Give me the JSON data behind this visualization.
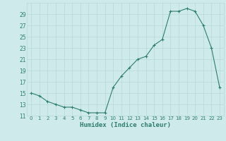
{
  "x": [
    0,
    1,
    2,
    3,
    4,
    5,
    6,
    7,
    8,
    9,
    10,
    11,
    12,
    13,
    14,
    15,
    16,
    17,
    18,
    19,
    20,
    21,
    22,
    23
  ],
  "y": [
    15,
    14.5,
    13.5,
    13,
    12.5,
    12.5,
    12,
    11.5,
    11.5,
    11.5,
    16,
    18,
    19.5,
    21,
    21.5,
    23.5,
    24.5,
    29.5,
    29.5,
    30,
    29.5,
    27,
    23,
    16
  ],
  "line_color": "#2e7d6e",
  "marker": "+",
  "bg_color": "#ceeaea",
  "grid_color": "#b8d8d8",
  "xlabel": "Humidex (Indice chaleur)",
  "ylim": [
    11,
    31
  ],
  "yticks": [
    11,
    13,
    15,
    17,
    19,
    21,
    23,
    25,
    27,
    29
  ],
  "xticks": [
    0,
    1,
    2,
    3,
    4,
    5,
    6,
    7,
    8,
    9,
    10,
    11,
    12,
    13,
    14,
    15,
    16,
    17,
    18,
    19,
    20,
    21,
    22,
    23
  ],
  "xlim": [
    -0.5,
    23.5
  ],
  "font_color": "#2e7d6e"
}
